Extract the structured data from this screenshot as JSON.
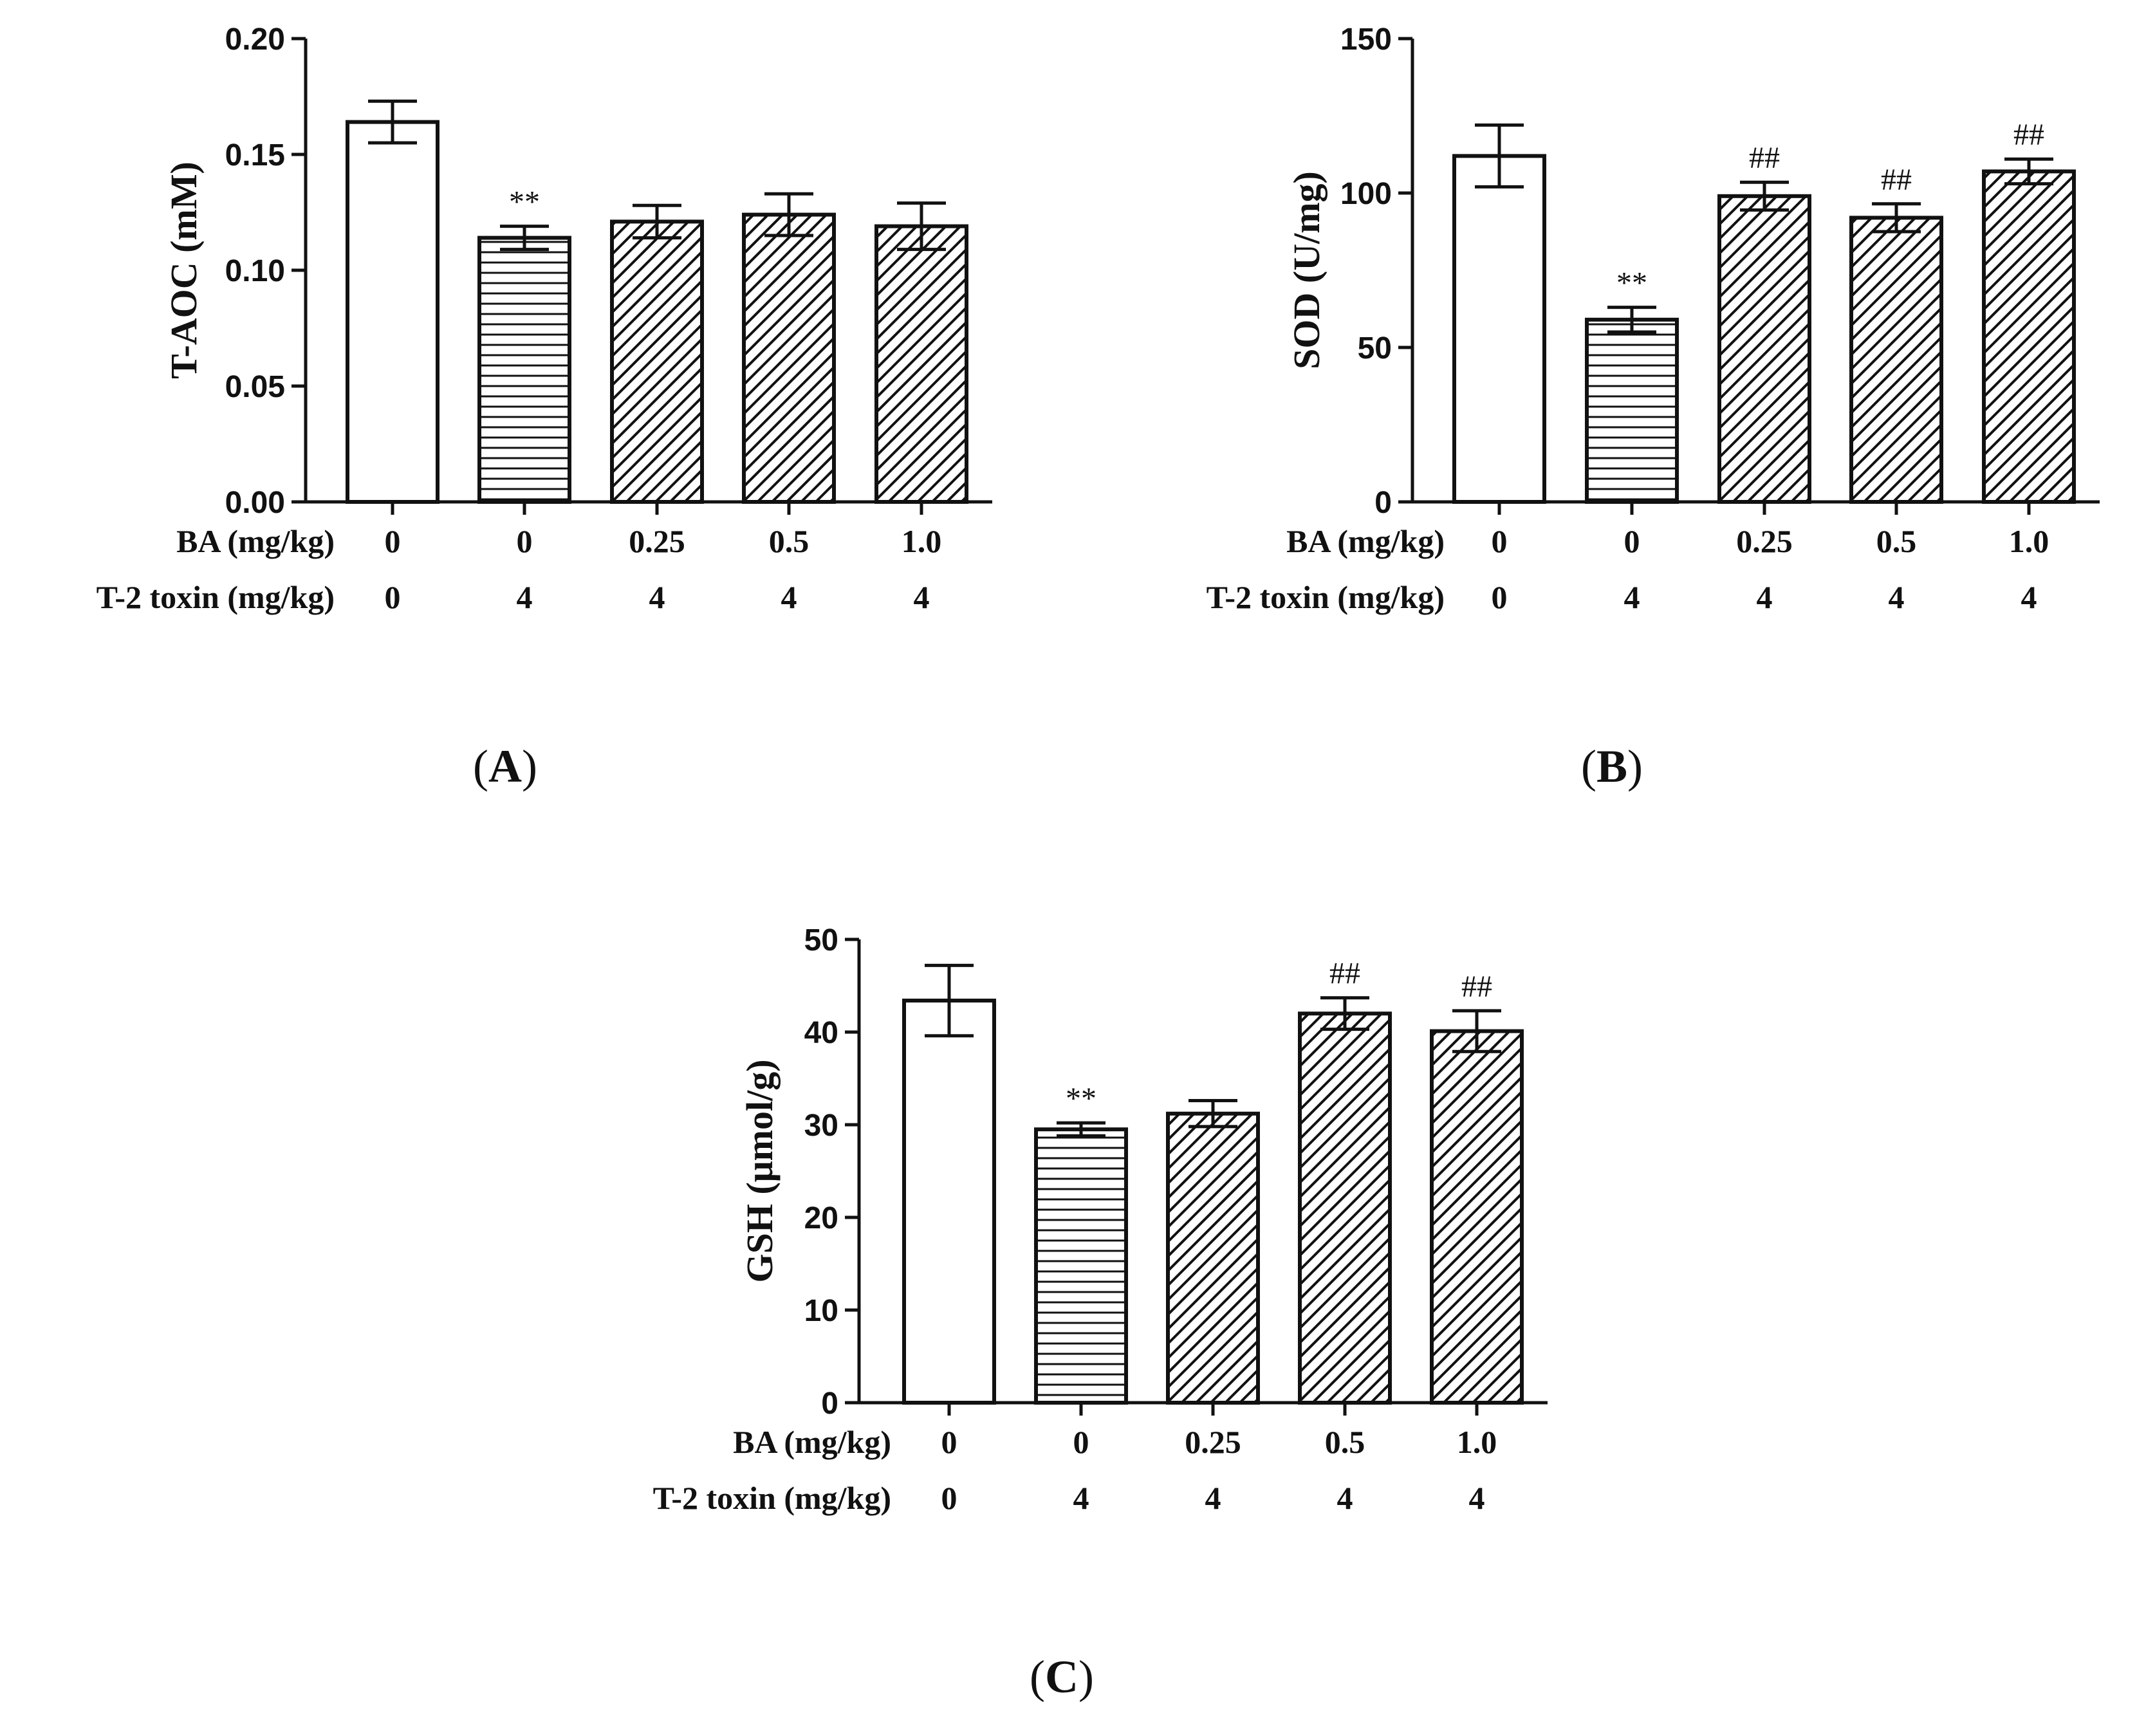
{
  "figure": {
    "row_labels": {
      "ba": "BA (mg/kg)",
      "toxin": "T-2 toxin (mg/kg)"
    }
  },
  "chart_data": [
    {
      "panel": "A",
      "type": "bar",
      "ylabel": "T-AOC (mM)",
      "ylim": [
        0,
        0.2
      ],
      "yticks": [
        "0.00",
        "0.05",
        "0.10",
        "0.15",
        "0.20"
      ],
      "ba_dose": [
        "0",
        "0",
        "0.25",
        "0.5",
        "1.0"
      ],
      "toxin_dose": [
        "0",
        "4",
        "4",
        "4",
        "4"
      ],
      "values": [
        0.164,
        0.114,
        0.121,
        0.124,
        0.119
      ],
      "errors": [
        0.009,
        0.005,
        0.007,
        0.009,
        0.01
      ],
      "patterns": [
        "open",
        "horizontal",
        "diagonal",
        "diagonal",
        "diagonal"
      ],
      "annotations": [
        "",
        "**",
        "",
        "",
        ""
      ]
    },
    {
      "panel": "B",
      "type": "bar",
      "ylabel": "SOD (U/mg)",
      "ylim": [
        0,
        150
      ],
      "yticks": [
        "0",
        "50",
        "100",
        "150"
      ],
      "ba_dose": [
        "0",
        "0",
        "0.25",
        "0.5",
        "1.0"
      ],
      "toxin_dose": [
        "0",
        "4",
        "4",
        "4",
        "4"
      ],
      "values": [
        112,
        59,
        99,
        92,
        107
      ],
      "errors": [
        10,
        4,
        4.5,
        4.5,
        4
      ],
      "patterns": [
        "open",
        "horizontal",
        "diagonal",
        "diagonal",
        "diagonal"
      ],
      "annotations": [
        "",
        "**",
        "##",
        "##",
        "##"
      ]
    },
    {
      "panel": "C",
      "type": "bar",
      "ylabel": "GSH (μmol/g)",
      "ylim": [
        0,
        50
      ],
      "yticks": [
        "0",
        "10",
        "20",
        "30",
        "40",
        "50"
      ],
      "ba_dose": [
        "0",
        "0",
        "0.25",
        "0.5",
        "1.0"
      ],
      "toxin_dose": [
        "0",
        "4",
        "4",
        "4",
        "4"
      ],
      "values": [
        43.4,
        29.5,
        31.2,
        42.0,
        40.1
      ],
      "errors": [
        3.8,
        0.7,
        1.4,
        1.7,
        2.2
      ],
      "patterns": [
        "open",
        "horizontal",
        "diagonal",
        "diagonal",
        "diagonal"
      ],
      "annotations": [
        "",
        "**",
        "",
        "##",
        "##"
      ]
    }
  ]
}
